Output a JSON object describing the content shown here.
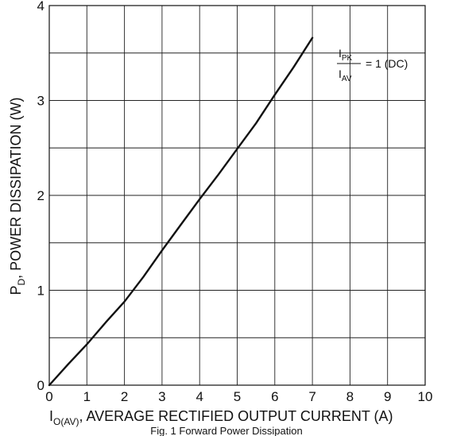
{
  "chart_data": {
    "type": "line",
    "xlabel": {
      "main": "I",
      "sub": "O(AV)",
      "rest": ", AVERAGE RECTIFIED OUTPUT CURRENT (A)"
    },
    "ylabel": {
      "main": "P",
      "sub": "D",
      "rest": ", POWER DISSIPATION (W)"
    },
    "xlim": [
      0,
      10
    ],
    "ylim": [
      0,
      4
    ],
    "x_ticks": [
      "0",
      "1",
      "2",
      "3",
      "4",
      "5",
      "6",
      "7",
      "8",
      "9",
      "10"
    ],
    "y_ticks": [
      "0",
      "1",
      "2",
      "3",
      "4"
    ],
    "grid": true,
    "series": [
      {
        "x": [
          0,
          0.5,
          1,
          1.5,
          2,
          2.5,
          3,
          3.5,
          4,
          4.5,
          5,
          5.5,
          6,
          6.5,
          7
        ],
        "y": [
          0,
          0.22,
          0.43,
          0.66,
          0.88,
          1.14,
          1.42,
          1.69,
          1.96,
          2.22,
          2.49,
          2.76,
          3.06,
          3.35,
          3.66
        ]
      }
    ],
    "annotation": {
      "numerator": {
        "main": "I",
        "sub": "PK"
      },
      "denominator": {
        "main": "I",
        "sub": "AV"
      },
      "text": "= 1 (DC)"
    },
    "caption": "Fig. 1 Forward Power Dissipation"
  }
}
